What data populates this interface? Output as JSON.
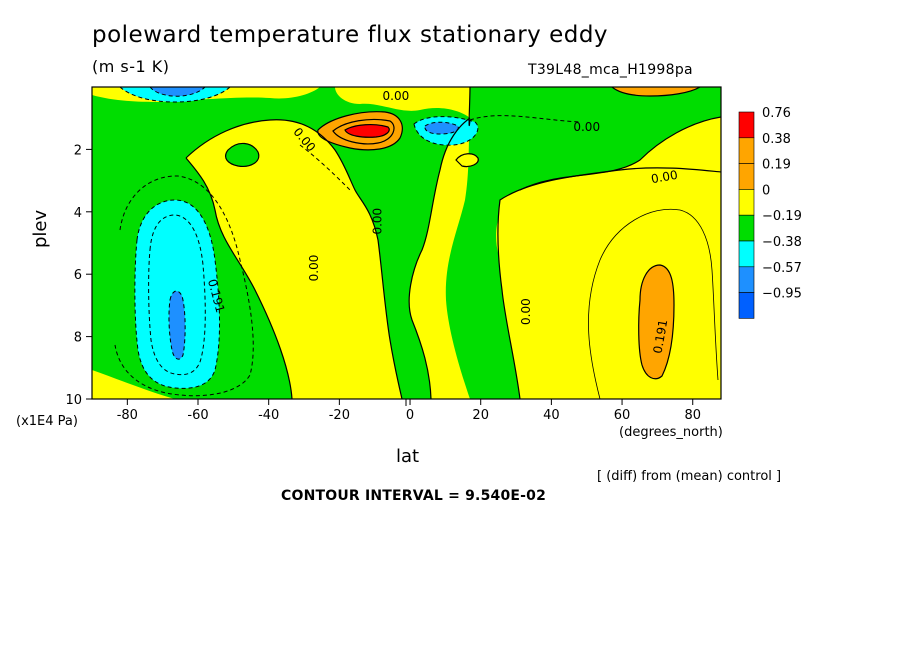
{
  "title": "poleward temperature flux stationary eddy",
  "units": "(m s-1 K)",
  "run_id": "T39L48_mca_H1998pa",
  "y_units": "(x1E4 Pa)",
  "x_units": "(degrees_north)",
  "diff_note": "[ (diff) from (mean) control ]",
  "contour_interval": "CONTOUR INTERVAL = 9.540E-02",
  "colors": {
    "red": "#ff0000",
    "orange": "#ffa500",
    "light_orange": "#ffa500",
    "yellow": "#ffff00",
    "green": "#00dd00",
    "cyan": "#00ffff",
    "blue": "#1e90ff",
    "dark_blue": "#0000ff"
  },
  "chart_data": {
    "type": "heatmap",
    "title": "poleward temperature flux stationary eddy",
    "xlabel": "lat",
    "ylabel": "plev",
    "xlim": [
      -90,
      88
    ],
    "ylim": [
      10,
      0
    ],
    "x_ticks": [
      -80,
      -60,
      -40,
      -20,
      0,
      20,
      40,
      60,
      80
    ],
    "y_ticks": [
      2,
      4,
      6,
      8,
      10
    ],
    "colorbar": {
      "labels": [
        "0.76",
        "0.38",
        "0.19",
        "0",
        "−0.19",
        "−0.38",
        "−0.57",
        "−0.95"
      ],
      "colors": [
        "#ff0000",
        "#ffa500",
        "#ffa500",
        "#ffff00",
        "#00dd00",
        "#00ffff",
        "#1e90ff",
        "#0060ff"
      ]
    },
    "contour_labels": [
      {
        "text": "0.00",
        "lat": -30,
        "plev": 1.7
      },
      {
        "text": "0.00",
        "lat": -4,
        "plev": 0.3
      },
      {
        "text": "0.00",
        "lat": 50,
        "plev": 1.3
      },
      {
        "text": "0.00",
        "lat": 72,
        "plev": 2.9
      },
      {
        "text": "0.00",
        "lat": -9,
        "plev": 4.3
      },
      {
        "text": "0.00",
        "lat": -27,
        "plev": 5.8
      },
      {
        "text": "0.00",
        "lat": 33,
        "plev": 7.2
      },
      {
        "text": "0.191",
        "lat": -55,
        "plev": 6.7
      },
      {
        "text": "0.191",
        "lat": 71,
        "plev": 8.0
      }
    ]
  }
}
